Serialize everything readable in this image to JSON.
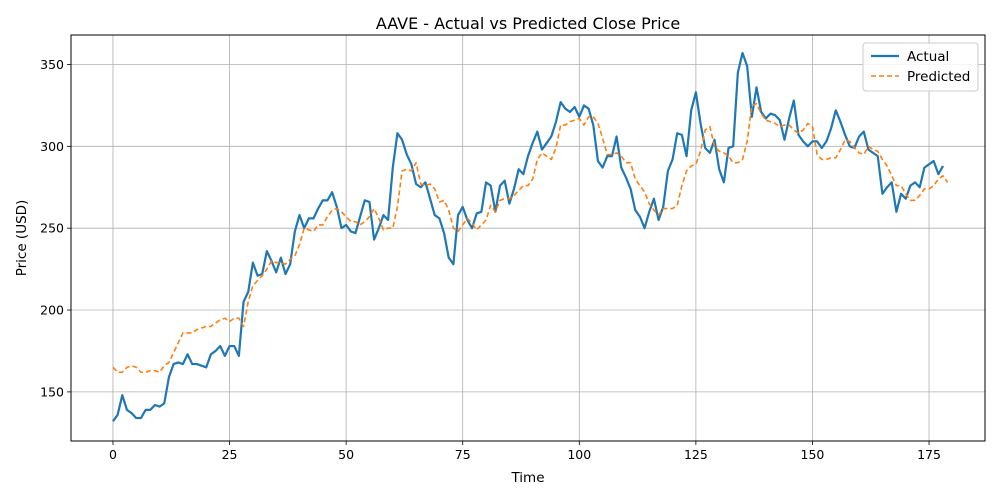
{
  "chart_data": {
    "type": "line",
    "title": "AAVE - Actual vs Predicted Close Price",
    "xlabel": "Time",
    "ylabel": "Price (USD)",
    "xlim": [
      -9,
      187
    ],
    "ylim": [
      120,
      368
    ],
    "xticks": [
      0,
      25,
      50,
      75,
      100,
      125,
      150,
      175
    ],
    "yticks": [
      150,
      200,
      250,
      300,
      350
    ],
    "grid": true,
    "legend_position": "top-right",
    "series": [
      {
        "name": "Actual",
        "color": "#1f77b4",
        "style": "solid",
        "values": [
          132,
          136,
          148,
          139,
          137,
          134,
          134,
          139,
          139,
          142,
          141,
          143,
          159,
          167,
          168,
          167,
          173,
          167,
          167,
          166,
          165,
          173,
          175,
          178,
          172,
          178,
          178,
          172,
          205,
          211,
          229,
          221,
          222,
          236,
          230,
          223,
          232,
          222,
          228,
          248,
          258,
          250,
          256,
          256,
          262,
          267,
          267,
          272,
          263,
          250,
          252,
          248,
          247,
          257,
          267,
          266,
          243,
          250,
          258,
          255,
          287,
          308,
          304,
          295,
          289,
          277,
          275,
          278,
          268,
          258,
          256,
          247,
          232,
          228,
          258,
          263,
          255,
          250,
          259,
          260,
          278,
          276,
          260,
          276,
          279,
          265,
          274,
          286,
          283,
          294,
          302,
          309,
          298,
          302,
          306,
          315,
          327,
          323,
          321,
          324,
          318,
          325,
          323,
          313,
          291,
          287,
          294,
          294,
          306,
          287,
          281,
          274,
          261,
          257,
          250,
          260,
          268,
          255,
          263,
          285,
          292,
          308,
          307,
          294,
          322,
          333,
          314,
          299,
          296,
          304,
          286,
          278,
          299,
          300,
          345,
          357,
          349,
          318,
          336,
          321,
          317,
          320,
          319,
          316,
          304,
          317,
          328,
          307,
          303,
          300,
          303,
          303,
          299,
          303,
          311,
          322,
          315,
          307,
          300,
          299,
          306,
          309,
          298,
          296,
          294,
          271,
          275,
          278,
          260,
          271,
          268,
          276,
          278,
          275,
          287,
          289,
          291,
          283,
          288
        ]
      },
      {
        "name": "Predicted",
        "color": "#ff7f0e",
        "style": "dashed",
        "values": [
          165,
          162,
          162,
          165,
          166,
          165,
          162,
          162,
          163,
          163,
          162,
          166,
          168,
          174,
          180,
          186,
          186,
          186,
          188,
          189,
          190,
          190,
          192,
          194,
          195,
          193,
          195,
          195,
          190,
          205,
          215,
          218,
          221,
          225,
          230,
          229,
          229,
          228,
          231,
          233,
          240,
          250,
          249,
          248,
          252,
          252,
          257,
          261,
          262,
          260,
          257,
          254,
          254,
          252,
          254,
          257,
          262,
          256,
          249,
          250,
          250,
          263,
          285,
          286,
          285,
          290,
          277,
          276,
          277,
          274,
          266,
          267,
          261,
          250,
          248,
          252,
          256,
          253,
          249,
          252,
          255,
          264,
          260,
          267,
          268,
          268,
          270,
          273,
          276,
          276,
          280,
          292,
          296,
          294,
          292,
          299,
          313,
          313,
          315,
          316,
          317,
          313,
          318,
          318,
          314,
          305,
          295,
          295,
          296,
          294,
          290,
          290,
          280,
          276,
          272,
          265,
          261,
          258,
          262,
          262,
          262,
          264,
          276,
          285,
          288,
          289,
          297,
          310,
          312,
          300,
          297,
          296,
          294,
          290,
          290,
          292,
          303,
          325,
          326,
          320,
          316,
          315,
          314,
          312,
          313,
          313,
          310,
          308,
          310,
          314,
          312,
          295,
          292,
          292,
          293,
          293,
          298,
          304,
          303,
          299,
          296,
          295,
          300,
          298,
          297,
          292,
          288,
          282,
          276,
          276,
          271,
          267,
          267,
          270,
          274,
          274,
          276,
          280,
          282,
          278
        ]
      }
    ]
  }
}
